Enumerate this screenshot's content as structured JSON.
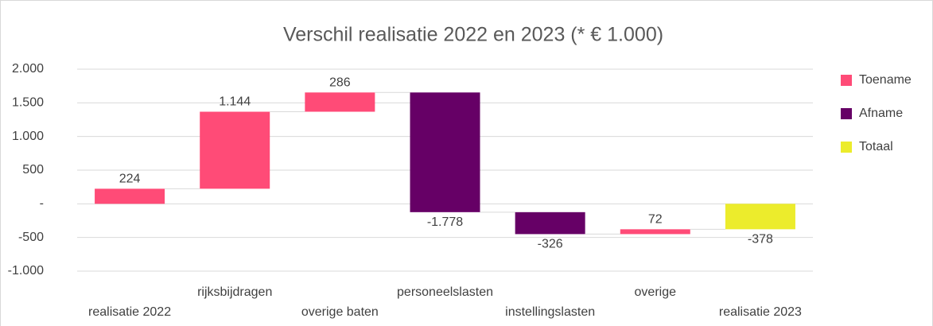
{
  "chart_data": {
    "type": "waterfall",
    "title": "Verschil realisatie 2022 en 2023 (* € 1.000)",
    "categories": [
      "realisatie 2022",
      "rijksbijdragen",
      "overige baten",
      "personeelslasten",
      "instellingslasten",
      "overige",
      "realisatie 2023"
    ],
    "series": [
      {
        "name": "Toename",
        "color": "#ff4b77",
        "values": [
          224,
          1144,
          286,
          null,
          null,
          72,
          null
        ],
        "value_labels": [
          "224",
          "1.144",
          "286",
          null,
          null,
          "72",
          null
        ]
      },
      {
        "name": "Afname",
        "color": "#660066",
        "values": [
          null,
          null,
          null,
          -1778,
          -326,
          null,
          null
        ],
        "value_labels": [
          null,
          null,
          null,
          "-1.778",
          "-326",
          null,
          null
        ]
      },
      {
        "name": "Totaal",
        "color": "#ecec2c",
        "values": [
          null,
          null,
          null,
          null,
          null,
          null,
          -378
        ],
        "value_labels": [
          null,
          null,
          null,
          null,
          null,
          null,
          "-378"
        ]
      }
    ],
    "ylim": [
      -1000,
      2000
    ],
    "yticks": [
      {
        "value": -1000,
        "label": "-1.000"
      },
      {
        "value": -500,
        "label": "-500"
      },
      {
        "value": 0,
        "label": "-"
      },
      500,
      {
        "value": 1000,
        "label": "1.000"
      },
      {
        "value": 1500,
        "label": "1.500"
      },
      {
        "value": 2000,
        "label": "2.000"
      }
    ],
    "grid": true,
    "legend": "right"
  }
}
